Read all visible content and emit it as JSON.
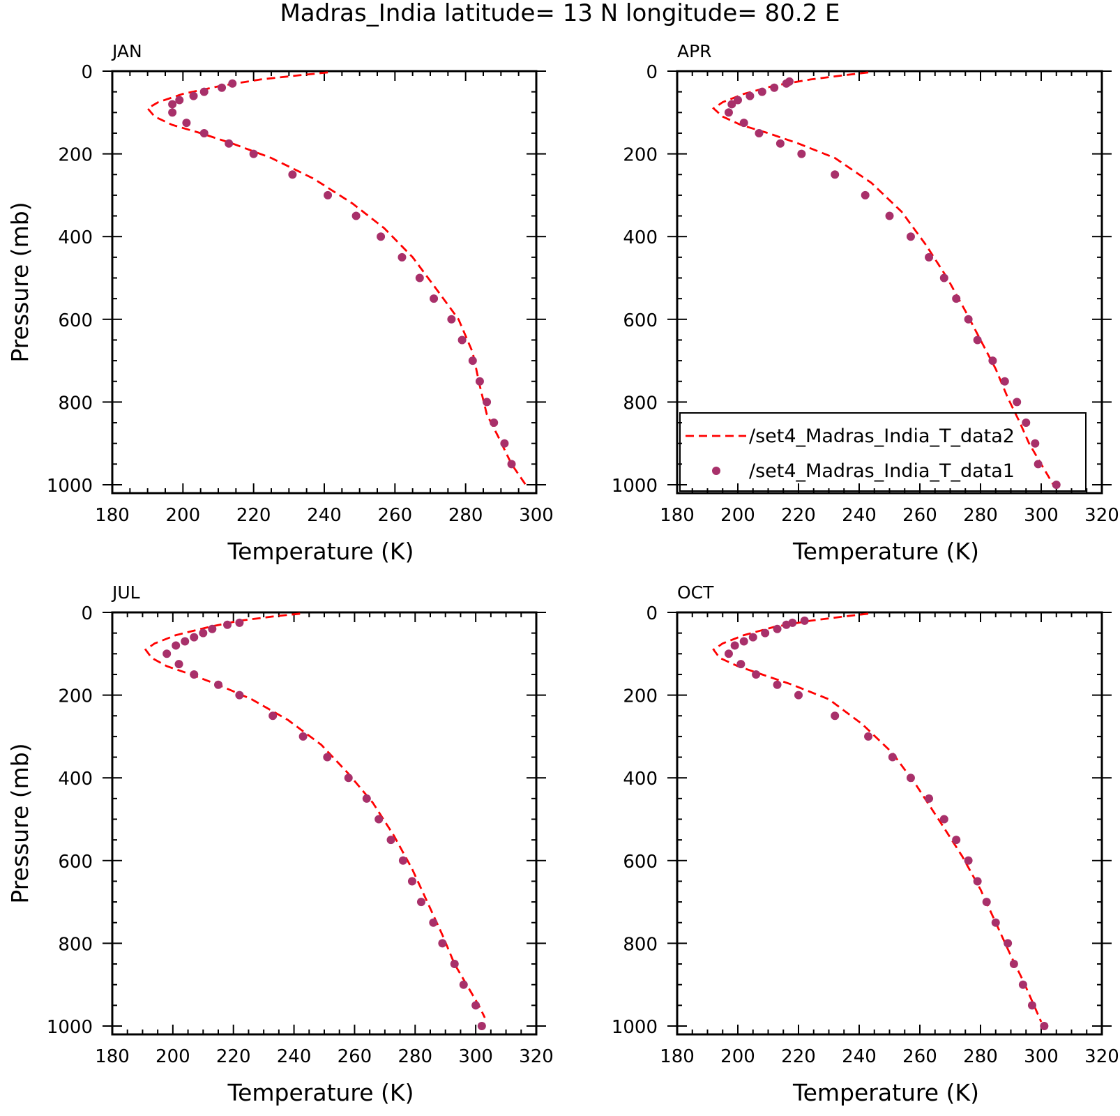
{
  "title": "Madras_India  latitude= 13 N longitude= 80.2 E",
  "colors": {
    "line": "#ff0000",
    "marker": "#a8306a",
    "axes": "#000000"
  },
  "legend": {
    "panel": 1,
    "position": "bottom-right",
    "items": [
      {
        "label": "/set4_Madras_India_T_data2",
        "style": "dashed-line"
      },
      {
        "label": "/set4_Madras_India_T_data1",
        "style": "marker"
      }
    ]
  },
  "chart_data": [
    {
      "type": "line",
      "panel_label": "JAN",
      "xlabel": "Temperature (K)",
      "ylabel": "Pressure (mb)",
      "xlim": [
        180,
        300
      ],
      "ylim": [
        1000,
        0
      ],
      "xticks": [
        180,
        200,
        220,
        240,
        260,
        280,
        300
      ],
      "yticks": [
        0,
        200,
        400,
        600,
        800,
        1000
      ],
      "series": [
        {
          "name": "/set4_Madras_India_T_data2",
          "style": "dashed",
          "x": [
            241,
            233,
            222,
            211,
            200,
            193,
            190,
            192,
            197,
            205,
            214,
            225,
            237,
            248,
            257,
            265,
            272,
            278,
            282,
            284,
            286,
            289,
            293,
            297
          ],
          "y": [
            3,
            10,
            20,
            35,
            55,
            75,
            90,
            110,
            130,
            150,
            175,
            210,
            260,
            320,
            380,
            450,
            530,
            600,
            680,
            760,
            830,
            880,
            950,
            1000
          ]
        },
        {
          "name": "/set4_Madras_India_T_data1",
          "style": "markers",
          "x": [
            214,
            211,
            206,
            203,
            199,
            197,
            197,
            201,
            206,
            213,
            220,
            231,
            241,
            249,
            256,
            262,
            267,
            271,
            276,
            279,
            282,
            284,
            286,
            288,
            291,
            293
          ],
          "y": [
            30,
            40,
            50,
            60,
            70,
            80,
            100,
            125,
            150,
            175,
            200,
            250,
            300,
            350,
            400,
            450,
            500,
            550,
            600,
            650,
            700,
            750,
            800,
            850,
            900,
            950
          ]
        }
      ]
    },
    {
      "type": "line",
      "panel_label": "APR",
      "xlabel": "Temperature (K)",
      "ylabel": "",
      "xlim": [
        180,
        320
      ],
      "ylim": [
        1000,
        0
      ],
      "xticks": [
        180,
        200,
        220,
        240,
        260,
        280,
        300,
        320
      ],
      "yticks": [
        0,
        200,
        400,
        600,
        800,
        1000
      ],
      "series": [
        {
          "name": "/set4_Madras_India_T_data2",
          "style": "dashed",
          "x": [
            243,
            235,
            224,
            212,
            202,
            195,
            192,
            195,
            201,
            210,
            220,
            232,
            244,
            254,
            262,
            269,
            275,
            280,
            285,
            289,
            293,
            296,
            300,
            304
          ],
          "y": [
            3,
            10,
            20,
            35,
            55,
            75,
            90,
            110,
            130,
            150,
            175,
            210,
            270,
            340,
            420,
            500,
            580,
            650,
            720,
            790,
            850,
            900,
            950,
            1000
          ]
        },
        {
          "name": "/set4_Madras_India_T_data1",
          "style": "markers",
          "x": [
            217,
            216,
            212,
            208,
            204,
            200,
            198,
            197,
            202,
            207,
            214,
            221,
            232,
            242,
            250,
            257,
            263,
            268,
            272,
            276,
            279,
            284,
            288,
            292,
            295,
            298,
            299,
            305
          ],
          "y": [
            25,
            30,
            40,
            50,
            60,
            70,
            80,
            100,
            125,
            150,
            175,
            200,
            250,
            300,
            350,
            400,
            450,
            500,
            550,
            600,
            650,
            700,
            750,
            800,
            850,
            900,
            950,
            1000
          ]
        }
      ]
    },
    {
      "type": "line",
      "panel_label": "JUL",
      "xlabel": "Temperature (K)",
      "ylabel": "Pressure (mb)",
      "xlim": [
        180,
        320
      ],
      "ylim": [
        1000,
        0
      ],
      "xticks": [
        180,
        200,
        220,
        240,
        260,
        280,
        300,
        320
      ],
      "yticks": [
        0,
        200,
        400,
        600,
        800,
        1000
      ],
      "series": [
        {
          "name": "/set4_Madras_India_T_data2",
          "style": "dashed",
          "x": [
            242,
            233,
            222,
            212,
            201,
            194,
            191,
            193,
            198,
            206,
            215,
            226,
            238,
            249,
            258,
            266,
            273,
            279,
            284,
            289,
            293,
            297,
            301,
            303
          ],
          "y": [
            3,
            10,
            20,
            35,
            55,
            75,
            90,
            110,
            130,
            150,
            175,
            210,
            260,
            320,
            390,
            460,
            540,
            620,
            700,
            780,
            850,
            900,
            950,
            980
          ]
        },
        {
          "name": "/set4_Madras_India_T_data1",
          "style": "markers",
          "x": [
            222,
            218,
            213,
            210,
            207,
            204,
            201,
            198,
            202,
            207,
            215,
            222,
            233,
            243,
            251,
            258,
            264,
            268,
            272,
            276,
            279,
            282,
            286,
            289,
            293,
            296,
            300,
            302
          ],
          "y": [
            25,
            30,
            40,
            50,
            60,
            70,
            80,
            100,
            125,
            150,
            175,
            200,
            250,
            300,
            350,
            400,
            450,
            500,
            550,
            600,
            650,
            700,
            750,
            800,
            850,
            900,
            950,
            1000
          ]
        }
      ]
    },
    {
      "type": "line",
      "panel_label": "OCT",
      "xlabel": "Temperature (K)",
      "ylabel": "",
      "xlim": [
        180,
        320
      ],
      "ylim": [
        1000,
        0
      ],
      "xticks": [
        180,
        200,
        220,
        240,
        260,
        280,
        300,
        320
      ],
      "yticks": [
        0,
        200,
        400,
        600,
        800,
        1000
      ],
      "series": [
        {
          "name": "/set4_Madras_India_T_data2",
          "style": "dashed",
          "x": [
            243,
            235,
            224,
            212,
            202,
            195,
            192,
            194,
            200,
            208,
            218,
            230,
            241,
            251,
            259,
            267,
            274,
            280,
            285,
            290,
            294,
            297,
            300
          ],
          "y": [
            3,
            10,
            20,
            35,
            55,
            75,
            90,
            110,
            130,
            150,
            175,
            210,
            270,
            340,
            420,
            510,
            590,
            670,
            750,
            830,
            890,
            940,
            990
          ]
        },
        {
          "name": "/set4_Madras_India_T_data1",
          "style": "markers",
          "x": [
            222,
            218,
            216,
            213,
            209,
            205,
            202,
            199,
            197,
            201,
            206,
            213,
            220,
            232,
            243,
            251,
            257,
            263,
            268,
            272,
            276,
            279,
            282,
            285,
            289,
            291,
            294,
            297,
            301
          ],
          "y": [
            20,
            25,
            30,
            40,
            50,
            60,
            70,
            80,
            100,
            125,
            150,
            175,
            200,
            250,
            300,
            350,
            400,
            450,
            500,
            550,
            600,
            650,
            700,
            750,
            800,
            850,
            900,
            950,
            1000
          ]
        }
      ]
    }
  ]
}
